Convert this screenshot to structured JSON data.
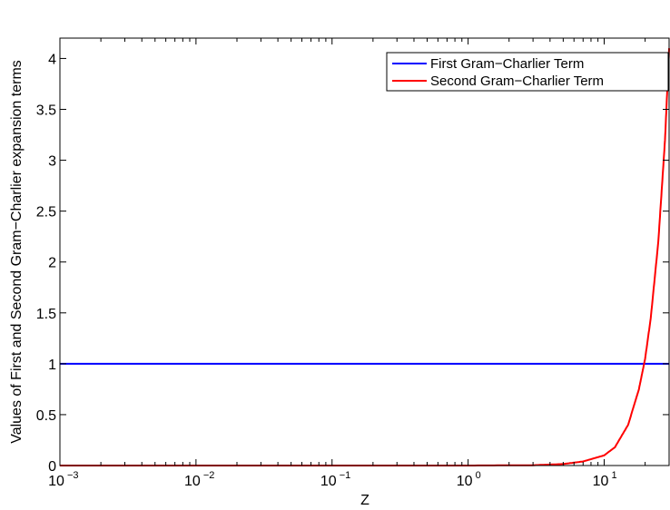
{
  "chart_data": {
    "type": "line",
    "title": "",
    "xlabel": "Z",
    "ylabel": "Values of First and Second Gram−Charlier expansion terms",
    "xscale": "log",
    "xlim": [
      0.001,
      30
    ],
    "ylim": [
      0,
      4.2
    ],
    "grid": false,
    "legend_position": "top-right",
    "x_ticks": [
      {
        "value": 0.001,
        "base": "10",
        "exp": "−3"
      },
      {
        "value": 0.01,
        "base": "10",
        "exp": "−2"
      },
      {
        "value": 0.1,
        "base": "10",
        "exp": "−1"
      },
      {
        "value": 1,
        "base": "10",
        "exp": "0"
      },
      {
        "value": 10,
        "base": "10",
        "exp": "1"
      }
    ],
    "y_ticks": [
      {
        "value": 0,
        "label": "0"
      },
      {
        "value": 0.5,
        "label": "0.5"
      },
      {
        "value": 1,
        "label": "1"
      },
      {
        "value": 1.5,
        "label": "1.5"
      },
      {
        "value": 2,
        "label": "2"
      },
      {
        "value": 2.5,
        "label": "2.5"
      },
      {
        "value": 3,
        "label": "3"
      },
      {
        "value": 3.5,
        "label": "3.5"
      },
      {
        "value": 4,
        "label": "4"
      }
    ],
    "series": [
      {
        "name": "First Gram−Charlier Term",
        "color": "#0000ff",
        "x": [
          0.001,
          30
        ],
        "y": [
          1,
          1
        ]
      },
      {
        "name": "Second Gram−Charlier Term",
        "color": "#ff0000",
        "x": [
          0.001,
          1,
          3,
          5,
          7,
          10,
          12,
          15,
          18,
          20,
          22,
          25,
          28,
          30
        ],
        "y": [
          0,
          0,
          0.003,
          0.015,
          0.04,
          0.1,
          0.18,
          0.4,
          0.75,
          1.05,
          1.45,
          2.2,
          3.2,
          4.1
        ]
      }
    ]
  }
}
